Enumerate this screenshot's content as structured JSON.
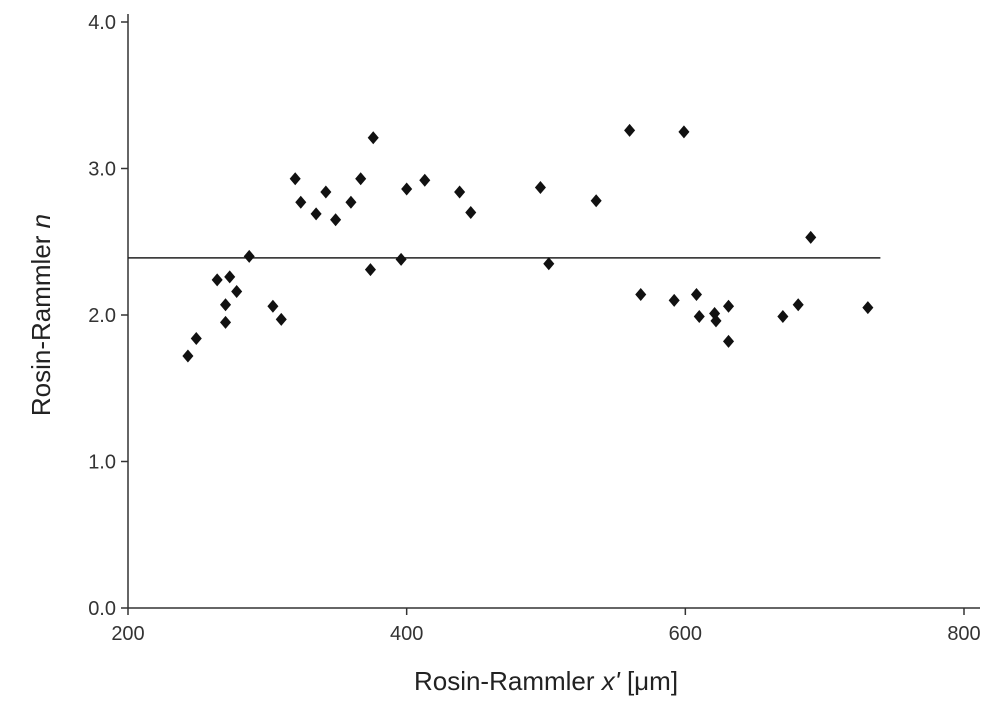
{
  "chart_data": {
    "type": "scatter",
    "title": "",
    "xlabel_main": "Rosin-Rammler ",
    "xlabel_italic": "x'",
    "xlabel_unit": " [μm]",
    "ylabel_main": "Rosin-Rammler ",
    "ylabel_italic": "n",
    "xlim": [
      200,
      800
    ],
    "ylim": [
      0.0,
      4.0
    ],
    "x_ticks": [
      200,
      400,
      600,
      800
    ],
    "x_tick_labels": [
      "200",
      "400",
      "600",
      "800"
    ],
    "y_ticks": [
      0.0,
      1.0,
      2.0,
      3.0,
      4.0
    ],
    "y_tick_labels": [
      "0.0",
      "1.0",
      "2.0",
      "3.0",
      "4.0"
    ],
    "grid": false,
    "marker": "diamond",
    "marker_color": "#111111",
    "axis_color": "#333333",
    "reference_line": {
      "y": 2.39,
      "x_start": 200,
      "x_end": 740
    },
    "points": [
      {
        "x": 243,
        "y": 1.72
      },
      {
        "x": 249,
        "y": 1.84
      },
      {
        "x": 264,
        "y": 2.24
      },
      {
        "x": 270,
        "y": 2.07
      },
      {
        "x": 270,
        "y": 1.95
      },
      {
        "x": 273,
        "y": 2.26
      },
      {
        "x": 278,
        "y": 2.16
      },
      {
        "x": 287,
        "y": 2.4
      },
      {
        "x": 304,
        "y": 2.06
      },
      {
        "x": 310,
        "y": 1.97
      },
      {
        "x": 320,
        "y": 2.93
      },
      {
        "x": 324,
        "y": 2.77
      },
      {
        "x": 335,
        "y": 2.69
      },
      {
        "x": 342,
        "y": 2.84
      },
      {
        "x": 349,
        "y": 2.65
      },
      {
        "x": 360,
        "y": 2.77
      },
      {
        "x": 367,
        "y": 2.93
      },
      {
        "x": 374,
        "y": 2.31
      },
      {
        "x": 376,
        "y": 3.21
      },
      {
        "x": 396,
        "y": 2.38
      },
      {
        "x": 400,
        "y": 2.86
      },
      {
        "x": 413,
        "y": 2.92
      },
      {
        "x": 438,
        "y": 2.84
      },
      {
        "x": 446,
        "y": 2.7
      },
      {
        "x": 496,
        "y": 2.87
      },
      {
        "x": 502,
        "y": 2.35
      },
      {
        "x": 536,
        "y": 2.78
      },
      {
        "x": 560,
        "y": 3.26
      },
      {
        "x": 568,
        "y": 2.14
      },
      {
        "x": 592,
        "y": 2.1
      },
      {
        "x": 599,
        "y": 3.25
      },
      {
        "x": 608,
        "y": 2.14
      },
      {
        "x": 610,
        "y": 1.99
      },
      {
        "x": 621,
        "y": 2.01
      },
      {
        "x": 622,
        "y": 1.96
      },
      {
        "x": 631,
        "y": 2.06
      },
      {
        "x": 631,
        "y": 1.82
      },
      {
        "x": 670,
        "y": 1.99
      },
      {
        "x": 681,
        "y": 2.07
      },
      {
        "x": 690,
        "y": 2.53
      },
      {
        "x": 731,
        "y": 2.05
      }
    ]
  }
}
